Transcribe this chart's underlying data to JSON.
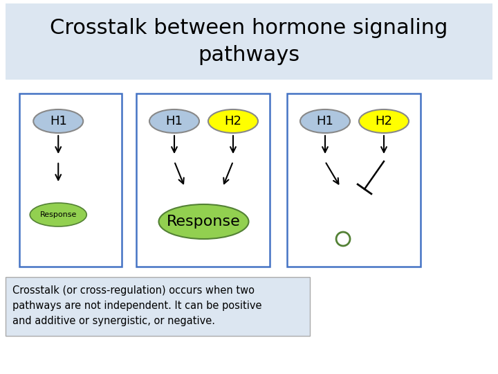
{
  "title": "Crosstalk between hormone signaling\npathways",
  "title_bg": "#dce6f1",
  "bg_color": "#ffffff",
  "caption": "Crosstalk (or cross-regulation) occurs when two\npathways are not independent. It can be positive\nand additive or synergistic, or negative.",
  "caption_bg": "#dce6f1",
  "h1_color": "#aec6df",
  "h2_color": "#ffff00",
  "response_small_color": "#92d050",
  "response_large_color": "#92d050",
  "response_small_text": "Response",
  "response_large_text": "Response",
  "panel_edge_color": "#4472c4",
  "small_circle_color": "#538135",
  "arrow_color": "#000000"
}
